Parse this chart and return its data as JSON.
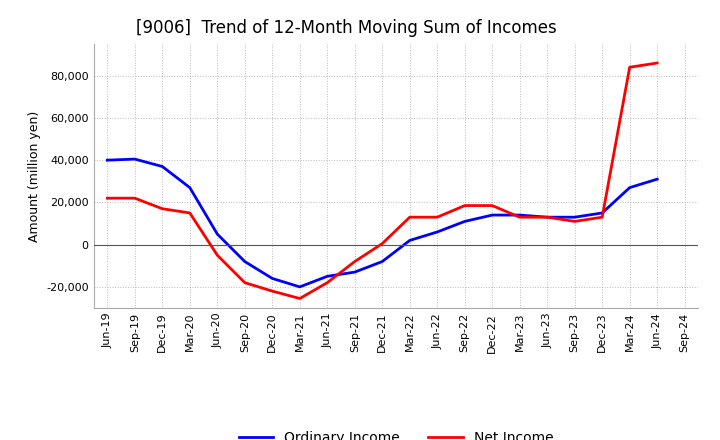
{
  "title": "[9006]  Trend of 12-Month Moving Sum of Incomes",
  "ylabel": "Amount (million yen)",
  "x_labels": [
    "Jun-19",
    "Sep-19",
    "Dec-19",
    "Mar-20",
    "Jun-20",
    "Sep-20",
    "Dec-20",
    "Mar-21",
    "Jun-21",
    "Sep-21",
    "Dec-21",
    "Mar-22",
    "Jun-22",
    "Sep-22",
    "Dec-22",
    "Mar-23",
    "Jun-23",
    "Sep-23",
    "Dec-23",
    "Mar-24",
    "Jun-24",
    "Sep-24"
  ],
  "ordinary_income": [
    40000,
    40500,
    37000,
    27000,
    5000,
    -8000,
    -16000,
    -20000,
    -15000,
    -13000,
    -8000,
    2000,
    6000,
    11000,
    14000,
    14000,
    13000,
    13000,
    15000,
    27000,
    31000,
    null
  ],
  "net_income": [
    22000,
    22000,
    17000,
    15000,
    -5000,
    -18000,
    -22000,
    -25500,
    -18000,
    -8000,
    500,
    13000,
    13000,
    18500,
    18500,
    13000,
    13000,
    11000,
    13000,
    84000,
    86000,
    null
  ],
  "ordinary_income_color": "#0000ff",
  "net_income_color": "#ff0000",
  "ylim": [
    -30000,
    95000
  ],
  "yticks": [
    -20000,
    0,
    20000,
    40000,
    60000,
    80000
  ],
  "background_color": "#ffffff",
  "plot_bg_color": "#ffffff",
  "grid_color": "#aaaaaa",
  "title_fontsize": 12,
  "axis_fontsize": 9,
  "tick_fontsize": 8,
  "legend_fontsize": 10,
  "line_width": 2.0
}
